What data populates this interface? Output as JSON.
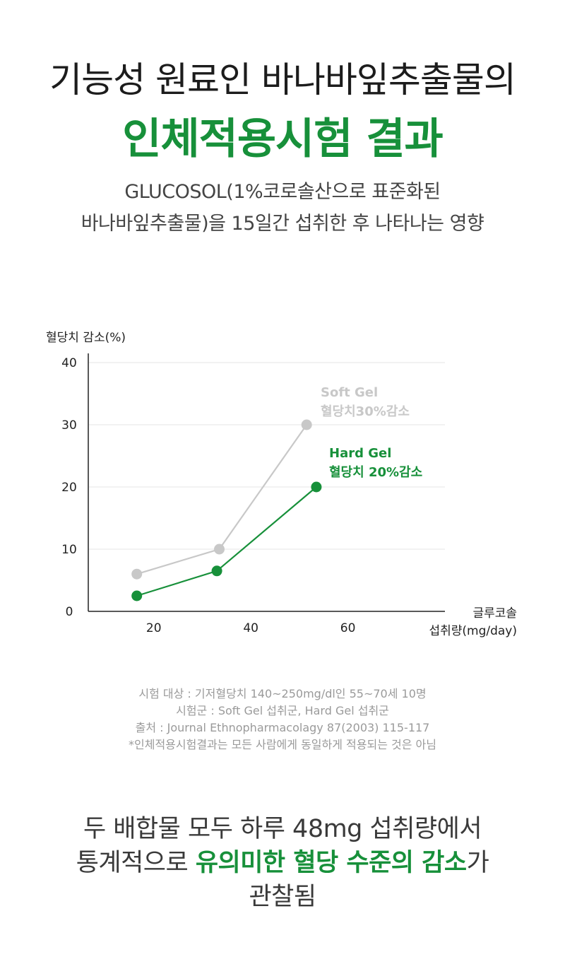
{
  "header": {
    "title_line1": "기능성 원료인 바나바잎추출물의",
    "title_line2": "인체적용시험 결과",
    "subtitle_line1": "GLUCOSOL(1%코로솔산으로 표준화된",
    "subtitle_line2": "바나바잎추출물)을 15일간 섭취한 후 나타나는 영향"
  },
  "colors": {
    "accent": "#17903a",
    "soft_gel": "#c8c8c8",
    "axis": "#222222",
    "grid": "#e4e4e4"
  },
  "chart_data": {
    "type": "line",
    "ylabel": "혈당치 감소(%)",
    "xlabel_line1": "글루코솔",
    "xlabel_line2": "섭취량(mg/day)",
    "yticks": [
      "0",
      "10",
      "20",
      "30",
      "40"
    ],
    "xticks": [
      "20",
      "40",
      "60"
    ],
    "ylim": [
      0,
      40
    ],
    "xlim": [
      6.5,
      80
    ],
    "grid": true,
    "series": [
      {
        "name": "Soft Gel",
        "label": "혈당치30%감소",
        "x": [
          16.5,
          33.5,
          51.5
        ],
        "values": [
          6,
          10,
          30
        ]
      },
      {
        "name": "Hard Gel",
        "label": "혈당치 20%감소",
        "x": [
          16.5,
          33,
          53.5
        ],
        "values": [
          2.5,
          6.5,
          20
        ]
      }
    ]
  },
  "notes": {
    "line1": "시험 대상 : 기저혈당치 140~250mg/dl인 55~70세 10명",
    "line2": "시험군 : Soft Gel 섭취군, Hard Gel 섭취군",
    "line3": "출처 : Journal Ethnopharmacolagy 87(2003) 115-117",
    "line4": "*인체적용시험결과는 모든 사람에게 동일하게 적용되는 것은 아님"
  },
  "conclusion": {
    "line1": "두 배합물 모두 하루 48mg 섭취량에서",
    "line2_pre": "통계적으로 ",
    "line2_highlight": "유의미한 혈당 수준의 감소",
    "line2_post": "가",
    "line3": "관찰됨"
  }
}
